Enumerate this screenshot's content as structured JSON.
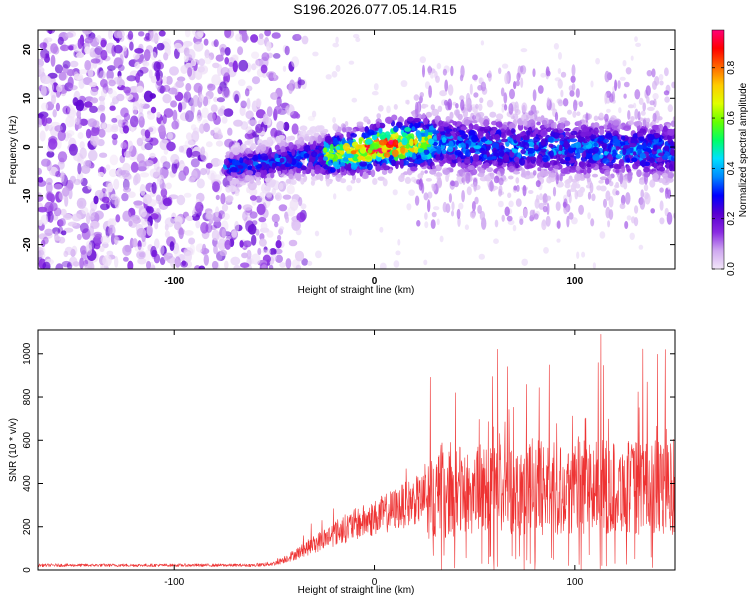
{
  "window": {
    "title": "S196.2026.077.05.14.R15"
  },
  "chart_data": [
    {
      "id": "spectrogram",
      "type": "heatmap",
      "xlabel": "Height of straight line (km)",
      "ylabel": "Frequency (Hz)",
      "xlim": [
        -168,
        150
      ],
      "ylim": [
        -25,
        24
      ],
      "xticks": [
        -100,
        0,
        100
      ],
      "yticks": [
        20,
        10,
        0,
        -10,
        -20
      ],
      "xtick_labels": [
        "-100",
        "0",
        "100"
      ],
      "ytick_labels": [
        "20",
        "10",
        "0",
        "-10",
        "-20"
      ],
      "colorbar": {
        "label": "Normalized spectral amplitude",
        "range": [
          0.0,
          0.95
        ],
        "ticks": [
          0.0,
          0.2,
          0.4,
          0.6,
          0.8
        ],
        "tick_labels": [
          "0.0",
          "0.2",
          "0.4",
          "0.6",
          "0.8"
        ],
        "colors": [
          "#f2e6f8",
          "#cfa8f0",
          "#8a2be2",
          "#5a00d0",
          "#0000ff",
          "#0088ff",
          "#00e0ff",
          "#00ff66",
          "#66ff00",
          "#e0ff00",
          "#ffcc00",
          "#ff6600",
          "#ff0000",
          "#ff0077"
        ]
      },
      "ridge": {
        "note": "signal ridge frequency in Hz vs height in km",
        "x": [
          -72,
          -50,
          -30,
          -10,
          0,
          10,
          25,
          50,
          80,
          110,
          150
        ],
        "y": [
          -4,
          -3,
          -2,
          -1,
          0,
          0.5,
          1,
          0,
          0,
          -0.5,
          -0.5
        ]
      },
      "noise_edge_km": -55
    },
    {
      "id": "snr",
      "type": "line",
      "xlabel": "Height of straight line (km)",
      "ylabel": "SNR (10 * v/v)",
      "xlim": [
        -168,
        150
      ],
      "ylim": [
        0,
        1110
      ],
      "xticks": [
        -100,
        0,
        100
      ],
      "yticks": [
        0,
        200,
        400,
        600,
        800,
        1000
      ],
      "xtick_labels": [
        "-100",
        "0",
        "100"
      ],
      "ytick_labels": [
        "0",
        "200",
        "400",
        "600",
        "800",
        "1000"
      ],
      "line_color": "#ee3333",
      "envelope": {
        "note": "approximate mean SNR level vs height in km",
        "x": [
          -168,
          -60,
          -50,
          -40,
          -30,
          -20,
          -10,
          0,
          10,
          20,
          30,
          40,
          50,
          60,
          80,
          100,
          120,
          150
        ],
        "y": [
          22,
          22,
          30,
          70,
          120,
          170,
          210,
          240,
          280,
          320,
          340,
          360,
          370,
          380,
          380,
          380,
          380,
          380
        ]
      }
    }
  ]
}
